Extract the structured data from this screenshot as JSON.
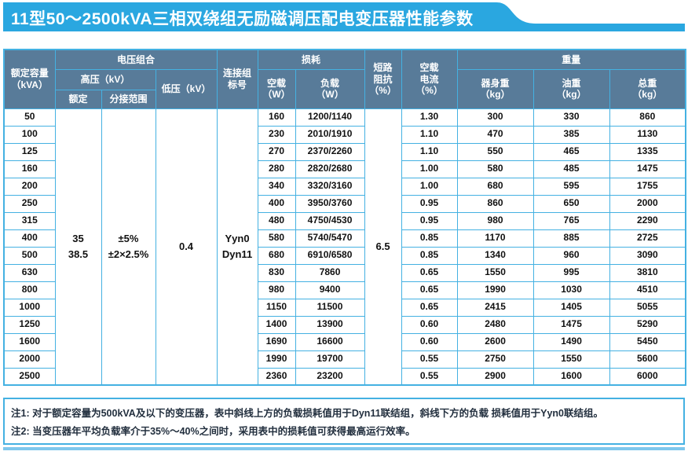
{
  "title": "11型50～2500kVA三相双绕组无励磁调压配电变压器性能参数",
  "colors": {
    "banner_blue": "#2aa7e0",
    "header_bg": "#587b99",
    "grid_blue": "#44b1e2",
    "bottom_rule": "#7ec7ec",
    "note_text": "#222f3e"
  },
  "table": {
    "headers": {
      "capacity": "额定容量\n（kVA）",
      "voltage_group": "电压组合",
      "hv": "高压（kV）",
      "hv_rated": "额定",
      "tap_range": "分接范围",
      "lv": "低压（kV）",
      "connection": "连接组\n标号",
      "loss": "损耗",
      "no_load": "空载\n（W）",
      "load": "负载\n（W）",
      "impedance": "短路\n阻抗\n（%）",
      "no_load_current": "空载\n电流\n（%）",
      "weight": "重量",
      "body_weight": "器身重\n（kg）",
      "oil_weight": "油重\n（kg）",
      "total_weight": "总重\n（kg）"
    },
    "merged": {
      "hv_rated": "35\n38.5",
      "tap_range": "±5%\n±2×2.5%",
      "lv": "0.4",
      "connection": "Yyn0\nDyn11",
      "impedance": "6.5"
    },
    "rows": [
      {
        "capacity": "50",
        "no_load": "160",
        "load": "1200/1140",
        "no_load_current": "1.30",
        "body": "300",
        "oil": "330",
        "total": "860"
      },
      {
        "capacity": "100",
        "no_load": "230",
        "load": "2010/1910",
        "no_load_current": "1.10",
        "body": "470",
        "oil": "385",
        "total": "1130"
      },
      {
        "capacity": "125",
        "no_load": "270",
        "load": "2370/2260",
        "no_load_current": "1.10",
        "body": "550",
        "oil": "465",
        "total": "1335"
      },
      {
        "capacity": "160",
        "no_load": "280",
        "load": "2820/2680",
        "no_load_current": "1.00",
        "body": "580",
        "oil": "485",
        "total": "1475"
      },
      {
        "capacity": "200",
        "no_load": "340",
        "load": "3320/3160",
        "no_load_current": "1.00",
        "body": "680",
        "oil": "595",
        "total": "1755"
      },
      {
        "capacity": "250",
        "no_load": "400",
        "load": "3950/3760",
        "no_load_current": "0.95",
        "body": "860",
        "oil": "650",
        "total": "2000"
      },
      {
        "capacity": "315",
        "no_load": "480",
        "load": "4750/4530",
        "no_load_current": "0.95",
        "body": "980",
        "oil": "765",
        "total": "2290"
      },
      {
        "capacity": "400",
        "no_load": "580",
        "load": "5740/5470",
        "no_load_current": "0.85",
        "body": "1170",
        "oil": "885",
        "total": "2725"
      },
      {
        "capacity": "500",
        "no_load": "680",
        "load": "6910/6580",
        "no_load_current": "0.85",
        "body": "1340",
        "oil": "960",
        "total": "3090"
      },
      {
        "capacity": "630",
        "no_load": "830",
        "load": "7860",
        "no_load_current": "0.65",
        "body": "1550",
        "oil": "995",
        "total": "3810"
      },
      {
        "capacity": "800",
        "no_load": "980",
        "load": "9400",
        "no_load_current": "0.65",
        "body": "1990",
        "oil": "1030",
        "total": "4510"
      },
      {
        "capacity": "1000",
        "no_load": "1150",
        "load": "11500",
        "no_load_current": "0.65",
        "body": "2415",
        "oil": "1405",
        "total": "5055"
      },
      {
        "capacity": "1250",
        "no_load": "1400",
        "load": "13900",
        "no_load_current": "0.60",
        "body": "2480",
        "oil": "1475",
        "total": "5290"
      },
      {
        "capacity": "1600",
        "no_load": "1690",
        "load": "16600",
        "no_load_current": "0.60",
        "body": "2600",
        "oil": "1490",
        "total": "5450"
      },
      {
        "capacity": "2000",
        "no_load": "1990",
        "load": "19700",
        "no_load_current": "0.55",
        "body": "2750",
        "oil": "1550",
        "total": "5600"
      },
      {
        "capacity": "2500",
        "no_load": "2360",
        "load": "23200",
        "no_load_current": "0.55",
        "body": "2900",
        "oil": "1600",
        "total": "6000"
      }
    ]
  },
  "notes": [
    "注1: 对于额定容量为500kVA及以下的变压器，表中斜线上方的负载损耗值用于Dyn11联结组，斜线下方的负载 损耗值用于Yyn0联结组。",
    "注2: 当变压器年平均负载率介于35%～40%之间时，采用表中的损耗值可获得最高运行效率。"
  ]
}
